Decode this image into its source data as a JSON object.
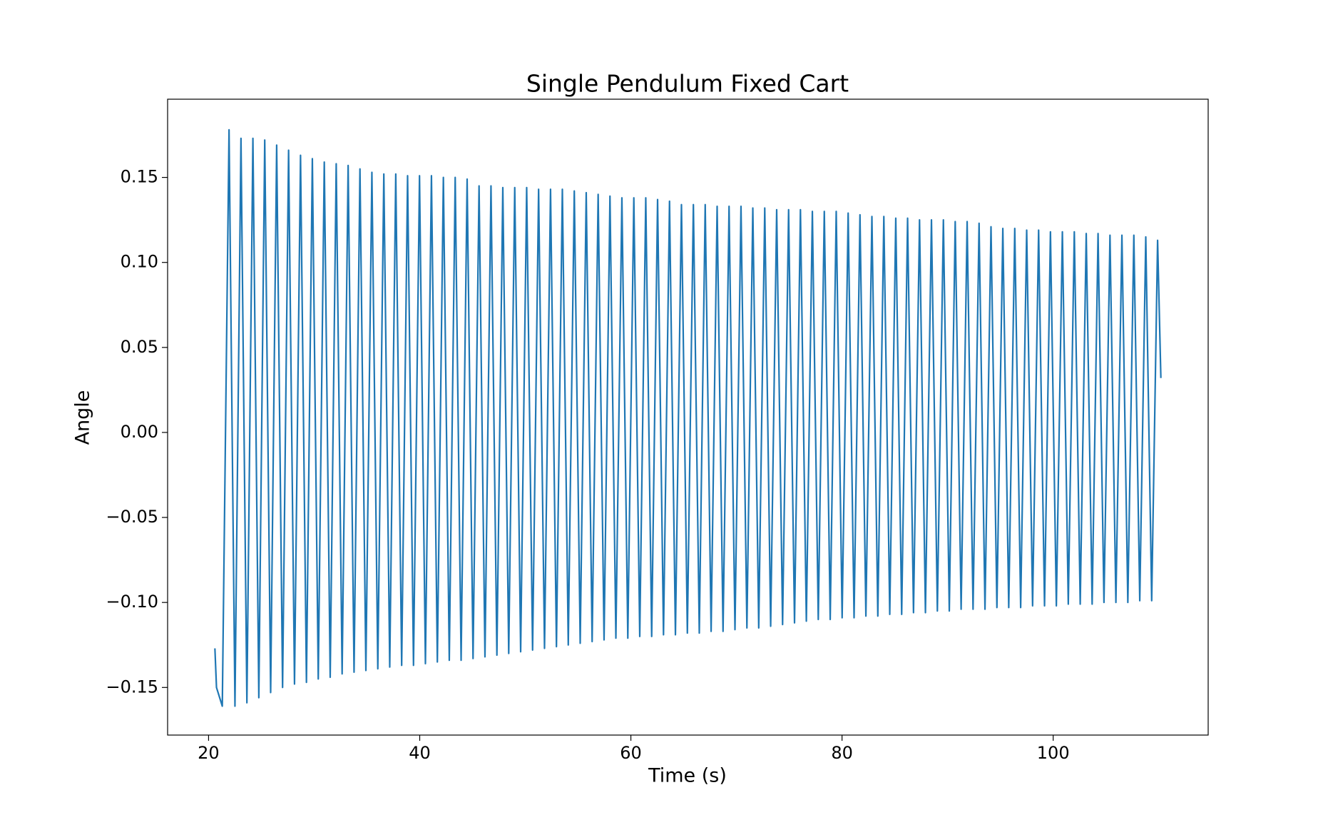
{
  "chart_data": {
    "type": "line",
    "title": "Single Pendulum Fixed Cart",
    "xlabel": "Time (s)",
    "ylabel": "Angle",
    "color": "#1f77b4",
    "xlim": [
      16.12,
      114.68
    ],
    "ylim": [
      -0.178,
      0.196
    ],
    "xticks": [
      20,
      40,
      60,
      80,
      100
    ],
    "yticks": [
      {
        "value": -0.15,
        "label": "−0.15"
      },
      {
        "value": -0.1,
        "label": "−0.10"
      },
      {
        "value": -0.05,
        "label": "−0.05"
      },
      {
        "value": 0,
        "label": "0.00"
      },
      0.05,
      {
        "value": 0.1,
        "label": "0.10"
      },
      0.15
    ],
    "x": [
      20.6,
      20.75,
      21.0,
      21.3,
      21.94,
      22.5,
      23.07,
      23.63,
      24.2,
      24.76,
      25.32,
      25.88,
      26.45,
      27.01,
      27.58,
      28.14,
      28.71,
      29.27,
      29.83,
      30.39,
      30.96,
      31.52,
      32.09,
      32.65,
      33.22,
      33.78,
      34.34,
      34.9,
      35.47,
      36.03,
      36.6,
      37.16,
      37.73,
      38.29,
      38.85,
      39.41,
      39.98,
      40.54,
      41.11,
      41.67,
      42.24,
      42.8,
      43.36,
      43.92,
      44.49,
      45.05,
      45.62,
      46.18,
      46.75,
      47.31,
      47.87,
      48.43,
      49.0,
      49.56,
      50.13,
      50.69,
      51.26,
      51.82,
      52.39,
      52.95,
      53.51,
      54.07,
      54.64,
      55.2,
      55.77,
      56.33,
      56.9,
      57.46,
      58.02,
      58.58,
      59.15,
      59.71,
      60.28,
      60.84,
      61.41,
      61.97,
      62.53,
      63.09,
      63.66,
      64.22,
      64.79,
      65.35,
      65.92,
      66.48,
      67.04,
      67.6,
      68.17,
      68.73,
      69.3,
      69.86,
      70.43,
      70.99,
      71.55,
      72.11,
      72.68,
      73.24,
      73.81,
      74.37,
      74.94,
      75.5,
      76.06,
      76.62,
      77.19,
      77.75,
      78.32,
      78.88,
      79.45,
      80.01,
      80.58,
      81.14,
      81.7,
      82.26,
      82.83,
      83.39,
      83.96,
      84.52,
      85.09,
      85.65,
      86.21,
      86.77,
      87.34,
      87.9,
      88.47,
      89.03,
      89.6,
      90.16,
      90.72,
      91.28,
      91.85,
      92.41,
      92.98,
      93.54,
      94.11,
      94.67,
      95.23,
      95.79,
      96.36,
      96.92,
      97.49,
      98.05,
      98.62,
      99.18,
      99.74,
      100.3,
      100.87,
      101.43,
      102.0,
      102.56,
      103.13,
      103.69,
      104.25,
      104.81,
      105.38,
      105.94,
      106.51,
      107.07,
      107.64,
      108.2,
      108.77,
      109.33,
      109.89,
      110.2
    ],
    "values": [
      -0.127,
      -0.15,
      -0.155,
      -0.161,
      0.178,
      -0.161,
      0.173,
      -0.159,
      0.173,
      -0.156,
      0.172,
      -0.153,
      0.169,
      -0.15,
      0.166,
      -0.148,
      0.163,
      -0.147,
      0.161,
      -0.145,
      0.159,
      -0.144,
      0.158,
      -0.142,
      0.157,
      -0.141,
      0.155,
      -0.14,
      0.153,
      -0.139,
      0.152,
      -0.138,
      0.152,
      -0.137,
      0.151,
      -0.137,
      0.151,
      -0.136,
      0.151,
      -0.135,
      0.15,
      -0.134,
      0.15,
      -0.134,
      0.149,
      -0.133,
      0.145,
      -0.132,
      0.145,
      -0.131,
      0.144,
      -0.13,
      0.144,
      -0.129,
      0.144,
      -0.128,
      0.143,
      -0.127,
      0.143,
      -0.126,
      0.143,
      -0.125,
      0.142,
      -0.124,
      0.141,
      -0.123,
      0.14,
      -0.122,
      0.139,
      -0.121,
      0.138,
      -0.121,
      0.138,
      -0.12,
      0.138,
      -0.12,
      0.137,
      -0.119,
      0.136,
      -0.119,
      0.134,
      -0.118,
      0.134,
      -0.118,
      0.134,
      -0.117,
      0.133,
      -0.117,
      0.133,
      -0.116,
      0.133,
      -0.115,
      0.132,
      -0.115,
      0.132,
      -0.114,
      0.131,
      -0.113,
      0.131,
      -0.112,
      0.131,
      -0.111,
      0.13,
      -0.11,
      0.13,
      -0.11,
      0.13,
      -0.109,
      0.129,
      -0.109,
      0.128,
      -0.108,
      0.127,
      -0.108,
      0.127,
      -0.107,
      0.126,
      -0.107,
      0.126,
      -0.106,
      0.125,
      -0.106,
      0.125,
      -0.105,
      0.125,
      -0.105,
      0.124,
      -0.104,
      0.124,
      -0.104,
      0.123,
      -0.104,
      0.121,
      -0.103,
      0.12,
      -0.103,
      0.12,
      -0.103,
      0.119,
      -0.102,
      0.119,
      -0.102,
      0.118,
      -0.102,
      0.118,
      -0.101,
      0.118,
      -0.101,
      0.117,
      -0.101,
      0.117,
      -0.1,
      0.116,
      -0.1,
      0.116,
      -0.1,
      0.116,
      -0.099,
      0.115,
      -0.099,
      0.113,
      0.032
    ]
  }
}
